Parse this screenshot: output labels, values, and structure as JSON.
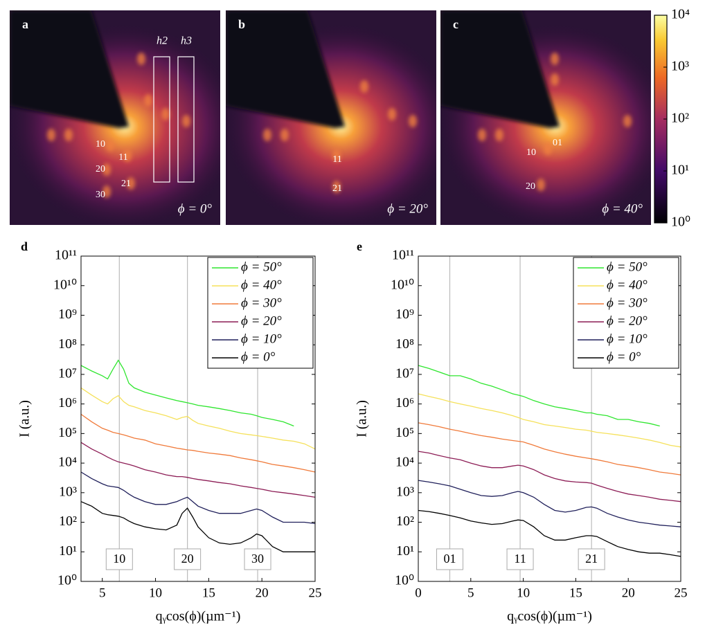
{
  "images": [
    {
      "panel": "a",
      "phi": "ϕ = 0°",
      "spots": [
        "10",
        "11",
        "20",
        "21",
        "30"
      ],
      "boxes": [
        "h2",
        "h3"
      ]
    },
    {
      "panel": "b",
      "phi": "ϕ = 20°",
      "spots": [
        "11",
        "21"
      ]
    },
    {
      "panel": "c",
      "phi": "ϕ = 40°",
      "spots": [
        "01",
        "10",
        "20"
      ]
    }
  ],
  "chart_data": [
    {
      "type": "colorbar",
      "log": true,
      "ylim": [
        1,
        10000
      ],
      "yticks": [
        {
          "value": 1,
          "label": "10⁰"
        },
        {
          "value": 10,
          "label": "10¹"
        },
        {
          "value": 100,
          "label": "10²"
        },
        {
          "value": 1000,
          "label": "10³"
        },
        {
          "value": 10000,
          "label": "10⁴"
        }
      ]
    },
    {
      "type": "line",
      "title": "d",
      "log": true,
      "xlabel": "qᵧcos(ϕ)(µm⁻¹)",
      "ylabel": "I (a.u.)",
      "legend": "top-right",
      "xlim": [
        3,
        25
      ],
      "xticks": [
        5,
        10,
        15,
        20,
        25
      ],
      "ylim": [
        1,
        100000000000
      ],
      "yticks": [
        {
          "value": 1,
          "label": "10⁰"
        },
        {
          "value": 10,
          "label": "10¹"
        },
        {
          "value": 100,
          "label": "10²"
        },
        {
          "value": 1000,
          "label": "10³"
        },
        {
          "value": 10000,
          "label": "10⁴"
        },
        {
          "value": 100000,
          "label": "10⁵"
        },
        {
          "value": 1000000,
          "label": "10⁶"
        },
        {
          "value": 10000000,
          "label": "10⁷"
        },
        {
          "value": 100000000,
          "label": "10⁸"
        },
        {
          "value": 1000000000,
          "label": "10⁹"
        },
        {
          "value": 10000000000,
          "label": "10¹⁰"
        },
        {
          "value": 100000000000,
          "label": "10¹¹"
        }
      ],
      "annotations": [
        {
          "x": 6.6,
          "label": "10"
        },
        {
          "x": 13,
          "label": "20"
        },
        {
          "x": 19.6,
          "label": "30"
        }
      ],
      "x": [
        3,
        4,
        5,
        5.5,
        6,
        6.5,
        7,
        7.5,
        8,
        9,
        10,
        11,
        12,
        12.5,
        13,
        13.5,
        14,
        15,
        16,
        17,
        18,
        19,
        19.5,
        20,
        21,
        22,
        23,
        24,
        25
      ],
      "series": [
        {
          "name": "ϕ = 50°",
          "color": "#2ee62e",
          "values": [
            20000000,
            13000000,
            9000000,
            7000000,
            15000000,
            30000000,
            15000000,
            5000000,
            3500000,
            2500000,
            2000000,
            1600000,
            1300000,
            1200000,
            1100000,
            1000000,
            900000,
            800000,
            700000,
            600000,
            500000,
            450000,
            400000,
            350000,
            300000,
            250000,
            180000,
            null,
            null
          ]
        },
        {
          "name": "ϕ = 40°",
          "color": "#f5e15a",
          "values": [
            3500000,
            2000000,
            1200000,
            1000000,
            1500000,
            1900000,
            1200000,
            900000,
            800000,
            600000,
            500000,
            400000,
            300000,
            350000,
            380000,
            280000,
            220000,
            180000,
            150000,
            120000,
            100000,
            90000,
            85000,
            80000,
            70000,
            60000,
            55000,
            45000,
            30000
          ]
        },
        {
          "name": "ϕ = 30°",
          "color": "#f07a3a",
          "values": [
            450000,
            250000,
            150000,
            130000,
            110000,
            100000,
            90000,
            80000,
            70000,
            60000,
            45000,
            38000,
            32000,
            30000,
            28000,
            27000,
            25000,
            22000,
            20000,
            18000,
            15000,
            13000,
            12000,
            11000,
            9000,
            8000,
            7000,
            6000,
            5000
          ]
        },
        {
          "name": "ϕ = 20°",
          "color": "#8c1c55",
          "values": [
            50000,
            30000,
            20000,
            16000,
            13000,
            11000,
            10000,
            9000,
            8000,
            6000,
            5000,
            4000,
            3500,
            3500,
            3300,
            3000,
            2800,
            2500,
            2200,
            2000,
            1700,
            1500,
            1400,
            1300,
            1100,
            1000,
            900,
            800,
            700
          ]
        },
        {
          "name": "ϕ = 10°",
          "color": "#1f1f5a",
          "values": [
            5000,
            3000,
            2000,
            1700,
            1600,
            1500,
            1200,
            900,
            700,
            500,
            400,
            400,
            500,
            600,
            700,
            500,
            350,
            250,
            200,
            200,
            200,
            250,
            280,
            250,
            150,
            100,
            100,
            100,
            90
          ]
        },
        {
          "name": "ϕ = 0°",
          "color": "#000000",
          "values": [
            500,
            350,
            200,
            180,
            170,
            160,
            140,
            110,
            90,
            70,
            60,
            55,
            80,
            200,
            300,
            150,
            70,
            30,
            20,
            18,
            20,
            30,
            40,
            35,
            15,
            10,
            10,
            10,
            10
          ]
        }
      ]
    },
    {
      "type": "line",
      "title": "e",
      "log": true,
      "xlabel": "qᵧcos(ϕ)(µm⁻¹)",
      "ylabel": "I (a.u.)",
      "legend": "top-right",
      "xlim": [
        0,
        25
      ],
      "xticks": [
        0,
        5,
        10,
        15,
        20,
        25
      ],
      "ylim": [
        1,
        100000000000
      ],
      "yticks": [
        {
          "value": 1,
          "label": "10⁰"
        },
        {
          "value": 10,
          "label": "10¹"
        },
        {
          "value": 100,
          "label": "10²"
        },
        {
          "value": 1000,
          "label": "10³"
        },
        {
          "value": 10000,
          "label": "10⁴"
        },
        {
          "value": 100000,
          "label": "10⁵"
        },
        {
          "value": 1000000,
          "label": "10⁶"
        },
        {
          "value": 10000000,
          "label": "10⁷"
        },
        {
          "value": 100000000,
          "label": "10⁸"
        },
        {
          "value": 1000000000,
          "label": "10⁹"
        },
        {
          "value": 10000000000,
          "label": "10¹⁰"
        },
        {
          "value": 100000000000,
          "label": "10¹¹"
        }
      ],
      "annotations": [
        {
          "x": 3,
          "label": "01"
        },
        {
          "x": 9.7,
          "label": "11"
        },
        {
          "x": 16.5,
          "label": "21"
        }
      ],
      "x": [
        0,
        1,
        2,
        3,
        4,
        5,
        6,
        7,
        8,
        9,
        9.5,
        10,
        11,
        12,
        13,
        14,
        15,
        16,
        16.5,
        17,
        18,
        19,
        20,
        21,
        22,
        23,
        24,
        25
      ],
      "series": [
        {
          "name": "ϕ = 50°",
          "color": "#2ee62e",
          "values": [
            20000000,
            16000000,
            12000000,
            9000000,
            9000000,
            7000000,
            5000000,
            4000000,
            3000000,
            2200000,
            2000000,
            1800000,
            1300000,
            1000000,
            800000,
            700000,
            600000,
            500000,
            500000,
            450000,
            400000,
            300000,
            300000,
            250000,
            220000,
            180000,
            null,
            null
          ]
        },
        {
          "name": "ϕ = 40°",
          "color": "#f5e15a",
          "values": [
            2200000,
            1800000,
            1500000,
            1200000,
            1000000,
            850000,
            700000,
            600000,
            500000,
            400000,
            350000,
            300000,
            250000,
            200000,
            180000,
            160000,
            140000,
            130000,
            120000,
            110000,
            100000,
            90000,
            80000,
            70000,
            60000,
            50000,
            40000,
            35000
          ]
        },
        {
          "name": "ϕ = 30°",
          "color": "#f07a3a",
          "values": [
            230000,
            200000,
            170000,
            140000,
            120000,
            100000,
            85000,
            75000,
            65000,
            58000,
            55000,
            52000,
            40000,
            30000,
            24000,
            20000,
            17000,
            15000,
            14000,
            13000,
            11000,
            9000,
            8000,
            7000,
            6000,
            5000,
            4500,
            4000
          ]
        },
        {
          "name": "ϕ = 20°",
          "color": "#8c1c55",
          "values": [
            25000,
            22000,
            18000,
            15000,
            13000,
            10000,
            8000,
            7000,
            7000,
            8000,
            8500,
            8000,
            6000,
            4000,
            3000,
            2500,
            2300,
            2200,
            2100,
            1800,
            1400,
            1100,
            900,
            800,
            700,
            600,
            550,
            500
          ]
        },
        {
          "name": "ϕ = 10°",
          "color": "#1f1f5a",
          "values": [
            2600,
            2300,
            2000,
            1700,
            1300,
            1000,
            800,
            750,
            800,
            1000,
            1100,
            1000,
            700,
            400,
            250,
            220,
            250,
            320,
            330,
            300,
            200,
            150,
            120,
            100,
            90,
            80,
            75,
            70
          ]
        },
        {
          "name": "ϕ = 0°",
          "color": "#000000",
          "values": [
            250,
            230,
            200,
            170,
            140,
            110,
            95,
            85,
            90,
            110,
            120,
            115,
            70,
            35,
            25,
            25,
            30,
            35,
            35,
            33,
            22,
            15,
            12,
            10,
            9,
            9,
            8,
            7
          ]
        }
      ]
    }
  ]
}
